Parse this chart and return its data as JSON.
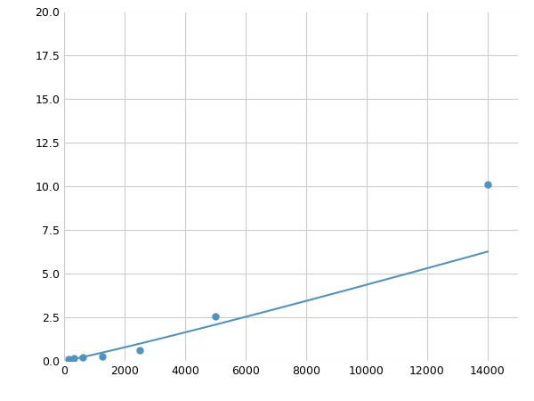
{
  "x": [
    156,
    312,
    625,
    1250,
    2500,
    5000,
    14000
  ],
  "y": [
    0.08,
    0.13,
    0.18,
    0.25,
    0.6,
    2.55,
    10.1
  ],
  "line_color": "#4f93c0",
  "marker_color": "#4f93c0",
  "marker_size": 5,
  "xlim": [
    0,
    15000
  ],
  "ylim": [
    0,
    20
  ],
  "xticks": [
    0,
    2000,
    4000,
    6000,
    8000,
    10000,
    12000,
    14000
  ],
  "yticks": [
    0.0,
    2.5,
    5.0,
    7.5,
    10.0,
    12.5,
    15.0,
    17.5,
    20.0
  ],
  "grid_color": "#cccccc",
  "background_color": "#ffffff",
  "linewidth": 1.5
}
